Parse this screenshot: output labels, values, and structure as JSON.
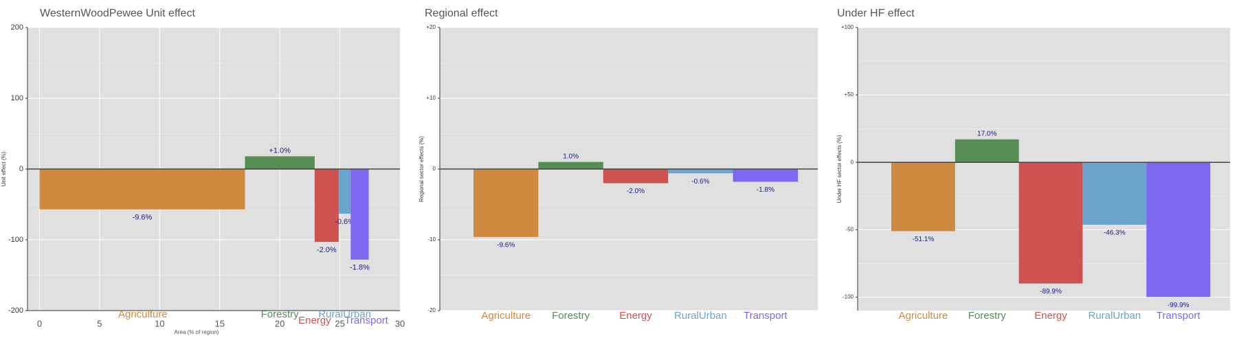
{
  "colors": {
    "Agriculture": "#d08a40",
    "Forestry": "#568d55",
    "Energy": "#cd5250",
    "RuralUrban": "#6aa4cf",
    "Transport": "#7b68ee",
    "panel_bg": "#e0e0e0",
    "label_text": "#1a1a8c",
    "title_text": "#555555"
  },
  "chart_data": [
    {
      "type": "bar",
      "title": "WesternWoodPewee Unit effect",
      "xlabel": "Area (% of region)",
      "ylabel": "Unit effect (%)",
      "xlim": [
        -1,
        30
      ],
      "ylim": [
        -200,
        200
      ],
      "xticks": [
        0,
        5,
        10,
        15,
        20,
        25,
        30
      ],
      "yticks": [
        -200,
        -100,
        0,
        100,
        200
      ],
      "ytick_labels": [
        "-200",
        "-100",
        "0",
        "100",
        "200"
      ],
      "grid": true,
      "bars": [
        {
          "category": "Agriculture",
          "x0": 0,
          "x1": 17.1,
          "value": -57,
          "label": "-9.6%"
        },
        {
          "category": "Forestry",
          "x0": 17.1,
          "x1": 22.9,
          "value": 18,
          "label": "+1.0%"
        },
        {
          "category": "Energy",
          "x0": 22.9,
          "x1": 24.9,
          "value": -103,
          "label": "-2.0%"
        },
        {
          "category": "RuralUrban",
          "x0": 24.9,
          "x1": 25.9,
          "value": -63,
          "label": "-0.6%"
        },
        {
          "category": "Transport",
          "x0": 25.9,
          "x1": 27.4,
          "value": -128,
          "label": "-1.8%"
        }
      ],
      "category_labels": [
        {
          "text": "Agriculture",
          "x": 8.6,
          "row": 0
        },
        {
          "text": "Forestry",
          "x": 20.0,
          "row": 0
        },
        {
          "text": "Energy",
          "x": 22.9,
          "row": 1
        },
        {
          "text": "RuralUrban",
          "x": 25.4,
          "row": 0
        },
        {
          "text": "Transport",
          "x": 27.2,
          "row": 1
        }
      ]
    },
    {
      "type": "bar",
      "title": "Regional effect",
      "xlabel": "",
      "ylabel": "Regional sector effects (%)",
      "ylim": [
        -20,
        20
      ],
      "yticks": [
        -20,
        -10,
        0,
        10,
        20
      ],
      "ytick_labels": [
        "-20",
        "-10",
        "0",
        "+10",
        "+20"
      ],
      "grid": true,
      "categories": [
        "Agriculture",
        "Forestry",
        "Energy",
        "RuralUrban",
        "Transport"
      ],
      "values": [
        -9.6,
        1.0,
        -2.0,
        -0.6,
        -1.8
      ],
      "labels": [
        "-9.6%",
        "1.0%",
        "-2.0%",
        "-0.6%",
        "-1.8%"
      ]
    },
    {
      "type": "bar",
      "title": "Under HF effect",
      "xlabel": "",
      "ylabel": "Under HF sector effects (%)",
      "ylim": [
        -110,
        100
      ],
      "yticks": [
        -100,
        -50,
        0,
        50,
        100
      ],
      "ytick_labels": [
        "-100",
        "-50",
        "0",
        "+50",
        "+100"
      ],
      "grid": true,
      "categories": [
        "Agriculture",
        "Forestry",
        "Energy",
        "RuralUrban",
        "Transport"
      ],
      "values": [
        -51.1,
        17.0,
        -89.9,
        -46.3,
        -99.9
      ],
      "labels": [
        "-51.1%",
        "17.0%",
        "-89.9%",
        "-46.3%",
        "-99.9%"
      ]
    }
  ]
}
